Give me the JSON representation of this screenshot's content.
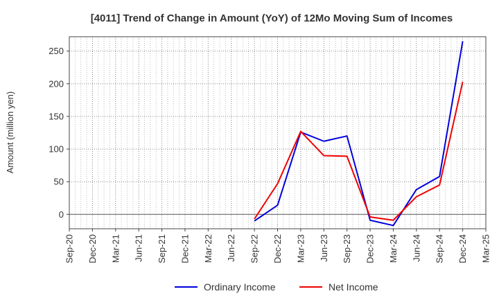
{
  "chart_data": {
    "type": "line",
    "title": "[4011]  Trend of Change in Amount (YoY) of 12Mo Moving Sum of Incomes",
    "ylabel": "Amount (million yen)",
    "xlabel": "",
    "categories": [
      "Sep-20",
      "Dec-20",
      "Mar-21",
      "Jun-21",
      "Sep-21",
      "Dec-21",
      "Mar-22",
      "Jun-22",
      "Sep-22",
      "Dec-22",
      "Mar-23",
      "Jun-23",
      "Sep-23",
      "Dec-23",
      "Mar-24",
      "Jun-24",
      "Sep-24",
      "Dec-24",
      "Mar-25"
    ],
    "yticks": [
      0,
      50,
      100,
      150,
      200,
      250
    ],
    "ylim": [
      -22,
      272
    ],
    "grid": true,
    "legend_position": "bottom",
    "series": [
      {
        "name": "Ordinary Income",
        "color": "#0000dd",
        "values": [
          null,
          null,
          null,
          null,
          null,
          null,
          null,
          null,
          -10,
          14,
          126,
          112,
          120,
          -9,
          -17,
          38,
          58,
          265,
          null
        ]
      },
      {
        "name": "Net Income",
        "color": "#ee0000",
        "values": [
          null,
          null,
          null,
          null,
          null,
          null,
          null,
          null,
          -7,
          47,
          127,
          90,
          89,
          -4,
          -9,
          27,
          45,
          203,
          null
        ]
      }
    ]
  }
}
